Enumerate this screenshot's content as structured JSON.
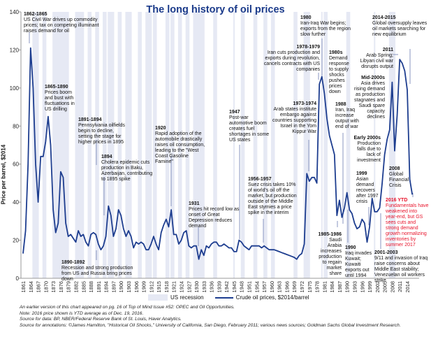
{
  "chart_data": {
    "type": "line",
    "title": "The long history of oil prices",
    "ylabel": "Price per barrel, $2014",
    "xlabel": "",
    "ylim": [
      0,
      140
    ],
    "yticks": [
      0,
      20,
      40,
      60,
      80,
      100,
      120,
      140
    ],
    "xlim": [
      1861,
      2016
    ],
    "xticks": [
      1861,
      1864,
      1867,
      1870,
      1873,
      1876,
      1879,
      1882,
      1885,
      1888,
      1891,
      1894,
      1897,
      1900,
      1903,
      1906,
      1909,
      1912,
      1915,
      1918,
      1921,
      1924,
      1927,
      1930,
      1933,
      1936,
      1939,
      1942,
      1945,
      1948,
      1951,
      1954,
      1957,
      1960,
      1963,
      1966,
      1969,
      1972,
      1975,
      1978,
      1981,
      1984,
      1987,
      1990,
      1993,
      1996,
      1999,
      2002,
      2005,
      2008,
      2011,
      2014
    ],
    "grid": false,
    "legend_position": "bottom",
    "legend": [
      "US recession",
      "Crude oil prices, $2014/barrel"
    ],
    "colors": {
      "line": "#1d3d8f",
      "recession": "#e6e9f4",
      "title": "#1a3a8a",
      "highlight": "#e8142b"
    },
    "series": [
      {
        "name": "Crude oil prices, $2014/barrel",
        "x": [
          1861,
          1862,
          1863,
          1864,
          1865,
          1866,
          1867,
          1868,
          1869,
          1870,
          1871,
          1872,
          1873,
          1874,
          1875,
          1876,
          1877,
          1878,
          1879,
          1880,
          1881,
          1882,
          1883,
          1884,
          1885,
          1886,
          1887,
          1888,
          1889,
          1890,
          1891,
          1892,
          1893,
          1894,
          1895,
          1896,
          1897,
          1898,
          1899,
          1900,
          1901,
          1902,
          1903,
          1904,
          1905,
          1906,
          1907,
          1908,
          1909,
          1910,
          1911,
          1912,
          1913,
          1914,
          1915,
          1916,
          1917,
          1918,
          1919,
          1920,
          1921,
          1922,
          1923,
          1924,
          1925,
          1926,
          1927,
          1928,
          1929,
          1930,
          1931,
          1932,
          1933,
          1934,
          1935,
          1936,
          1937,
          1938,
          1939,
          1940,
          1941,
          1942,
          1943,
          1944,
          1945,
          1946,
          1947,
          1948,
          1949,
          1950,
          1951,
          1952,
          1953,
          1954,
          1955,
          1956,
          1957,
          1958,
          1959,
          1960,
          1961,
          1962,
          1963,
          1964,
          1965,
          1966,
          1967,
          1968,
          1969,
          1970,
          1971,
          1972,
          1973,
          1974,
          1975,
          1976,
          1977,
          1978,
          1979,
          1980,
          1981,
          1982,
          1983,
          1984,
          1985,
          1986,
          1987,
          1988,
          1989,
          1990,
          1991,
          1992,
          1993,
          1994,
          1995,
          1996,
          1997,
          1998,
          1999,
          2000,
          2001,
          2002,
          2003,
          2004,
          2005,
          2006,
          2007,
          2008,
          2009,
          2010,
          2011,
          2012,
          2013,
          2014,
          2015,
          2016
        ],
        "values": [
          13,
          25,
          60,
          121,
          100,
          60,
          40,
          64,
          64,
          72,
          85,
          70,
          36,
          24,
          29,
          56,
          53,
          29,
          22,
          23,
          21,
          19,
          25,
          22,
          23,
          19,
          17,
          23,
          24,
          23,
          18,
          15,
          17,
          22,
          38,
          33,
          22,
          26,
          36,
          33,
          26,
          22,
          25,
          22,
          16,
          19,
          18,
          19,
          18,
          15,
          15,
          18,
          22,
          18,
          15,
          24,
          28,
          31,
          27,
          36,
          23,
          23,
          18,
          20,
          24,
          25,
          17,
          16,
          17,
          17,
          10,
          15,
          12,
          17,
          16,
          18,
          19,
          19,
          17,
          17,
          18,
          17,
          16,
          16,
          14,
          14,
          20,
          19,
          17,
          16,
          15,
          17,
          17,
          17,
          17,
          16,
          17,
          16,
          15,
          15,
          15,
          14.5,
          14,
          13.5,
          13,
          12.5,
          12,
          11.5,
          11,
          10,
          12,
          13,
          18,
          55,
          51,
          53,
          53,
          50,
          102,
          106,
          97,
          84,
          75,
          70,
          65,
          33,
          41,
          32,
          37,
          45,
          36,
          34,
          29,
          26,
          27,
          31,
          29,
          19,
          27,
          42,
          35,
          35,
          37,
          50,
          65,
          73,
          78,
          103,
          67,
          86,
          115,
          113,
          109,
          99,
          52,
          44
        ]
      }
    ],
    "recessions": [
      [
        1865,
        1867
      ],
      [
        1869,
        1870
      ],
      [
        1873,
        1879
      ],
      [
        1882,
        1885
      ],
      [
        1887,
        1888
      ],
      [
        1890,
        1891
      ],
      [
        1893,
        1894
      ],
      [
        1895,
        1897
      ],
      [
        1899,
        1900
      ],
      [
        1902,
        1904
      ],
      [
        1907,
        1908
      ],
      [
        1910,
        1912
      ],
      [
        1913,
        1914
      ],
      [
        1918,
        1919
      ],
      [
        1920,
        1921
      ],
      [
        1923,
        1924
      ],
      [
        1926,
        1927
      ],
      [
        1929,
        1933
      ],
      [
        1937,
        1938
      ],
      [
        1945,
        1945
      ],
      [
        1948,
        1949
      ],
      [
        1953,
        1954
      ],
      [
        1957,
        1958
      ],
      [
        1960,
        1961
      ],
      [
        1969,
        1970
      ],
      [
        1973,
        1975
      ],
      [
        1980,
        1980
      ],
      [
        1981,
        1982
      ],
      [
        1990,
        1991
      ],
      [
        2001,
        2001
      ],
      [
        2007,
        2009
      ]
    ],
    "annotations": [
      {
        "id": "a1862",
        "year": "1862-1865",
        "text": "US Civil War drives up commodity prices; tax on competing illuminant raises demand for oil"
      },
      {
        "id": "a1865",
        "year": "1865-1890",
        "text": "Prices boom and bust with fluctuations in US drilling"
      },
      {
        "id": "a1891",
        "year": "1891-1894",
        "text": "Pennsylvania oilfields begin to decline, setting the stage for higher prices in 1895"
      },
      {
        "id": "a1894",
        "year": "1894",
        "text": "Cholera epidemic cuts production in Baku, Azerbaijan, contributing to 1895 spike"
      },
      {
        "id": "a1890",
        "year": "1890-1892",
        "text": "Recession and strong production from US and Russia bring prices down"
      },
      {
        "id": "a1920",
        "year": "1920",
        "text": "Rapid adoption of the automobile drastically raises oil consumption, leading to the \"West Coast Gasoline Famine\""
      },
      {
        "id": "a1931",
        "year": "1931",
        "text": "Prices hit record low as onset of Great Depression reduces demand"
      },
      {
        "id": "a1947",
        "year": "1947",
        "text": "Post-war automotive boom creates fuel shortages in some US states"
      },
      {
        "id": "a1956",
        "year": "1956-1957",
        "text": "Suez crisis takes 10% of world's oil off the market, but production outside of the Middle East stymies a price spike in the interim"
      },
      {
        "id": "a1973",
        "year": "1973-1974",
        "text": "Arab states institute embargo against countries supporting Israel in the Yom Kippur War"
      },
      {
        "id": "a1978",
        "year": "1978-1979",
        "text": "Iran cuts production and exports during revolution, cancels contracts with US companies"
      },
      {
        "id": "a1980",
        "year": "1980",
        "text": "Iran-Iraq War begins; exports from the region slow further"
      },
      {
        "id": "a1980s",
        "year": "1980s",
        "text": "Demand response to supply shocks pushes prices down"
      },
      {
        "id": "a1988",
        "year": "1988",
        "text": "Iran, Iraq increase output with end of war"
      },
      {
        "id": "a1985",
        "year": "1985-1986",
        "text": "Saudi Arabia increases production to regain market share"
      },
      {
        "id": "a1990",
        "year": "1990",
        "text": "Iraq invades Kuwait; Kuwaiti exports out until 1994"
      },
      {
        "id": "a1999",
        "year": "1999",
        "text": "Asian demand recovers after 1997 crisis"
      },
      {
        "id": "aearly",
        "year": "Early 2000s",
        "text": "Production falls due to lack of investment"
      },
      {
        "id": "amid",
        "year": "Mid-2000s",
        "text": "Asia drives rising demand as production stagnates and Saudi spare capacity declines"
      },
      {
        "id": "a2011",
        "year": "2011",
        "text": "Arab Spring; Libyan civil war disrupts output"
      },
      {
        "id": "a2014",
        "year": "2014-2015",
        "text": "Global oversupply leaves oil markets searching for new equilibrium"
      },
      {
        "id": "a2008",
        "year": "2008",
        "text": "Global Financial Crisis"
      },
      {
        "id": "a2016",
        "year": "2016 YTD",
        "text": "Fundamentals have weakened into year-end, but GS sees cuts and strong demand growth normalizing inventories by summer 2017"
      },
      {
        "id": "a2001",
        "year": "2001-2003",
        "text": "9/11 and invasion of Iraq raise concerns about Middle East stability; Venezuelan oil workers strike"
      }
    ]
  },
  "notes": [
    "An earlier version of this chart appeared on pg. 16 of Top of Mind Issue #52: OPEC and Oil Opportunities.",
    "Note: 2016 price shown is YTD average as of Dec. 19, 2016.",
    "Source for data: BP, NBER/Federal Reserve Bank of St. Louis, Haver Analytics.",
    "Source for annotations: ©James Hamilton, \"Historical Oil Shocks,\" University of California, San Diego, February 2011; various news sources; Goldman Sachs Global Investment Research."
  ]
}
